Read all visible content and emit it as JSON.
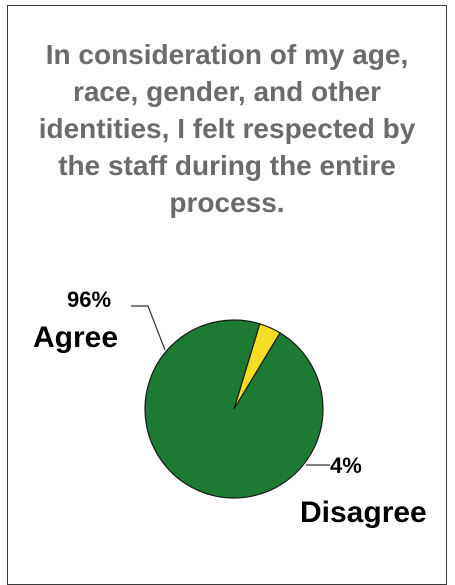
{
  "chart_data": {
    "type": "pie",
    "title": "In consideration of my age, race, gender, and other identities, I felt respected by the staff during the entire process.",
    "slices": [
      {
        "label": "Agree",
        "percent_label": "96%",
        "value": 96,
        "color": "#1c7a33"
      },
      {
        "label": "Disagree",
        "percent_label": "4%",
        "value": 4,
        "color": "#f5dd23"
      }
    ]
  }
}
